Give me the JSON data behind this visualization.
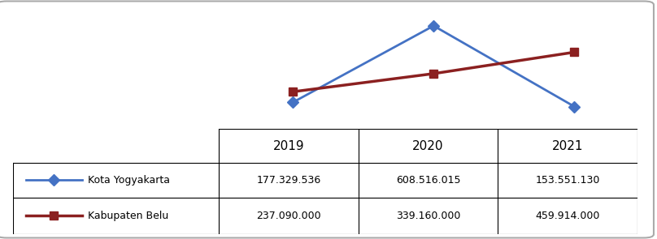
{
  "years": [
    2019,
    2020,
    2021
  ],
  "kota_yogyakarta": [
    177329536,
    608516015,
    153551130
  ],
  "kabupaten_belu": [
    237090000,
    339160000,
    459914000
  ],
  "kota_color": "#4472c4",
  "belu_color": "#8b2020",
  "table_years": [
    "2019",
    "2020",
    "2021"
  ],
  "kota_label": "◆Kota Yogyakarta",
  "belu_label": "■Kabupaten Belu",
  "kota_values_str": [
    "177.329.536",
    "608.516.015",
    "153.551.130"
  ],
  "belu_values_str": [
    "237.090.000",
    "339.160.000",
    "459.914.000"
  ],
  "background": "#ffffff",
  "border_color": "#aaaaaa",
  "grid_color": "#c0c0c0",
  "ylim": [
    0,
    700000000
  ]
}
